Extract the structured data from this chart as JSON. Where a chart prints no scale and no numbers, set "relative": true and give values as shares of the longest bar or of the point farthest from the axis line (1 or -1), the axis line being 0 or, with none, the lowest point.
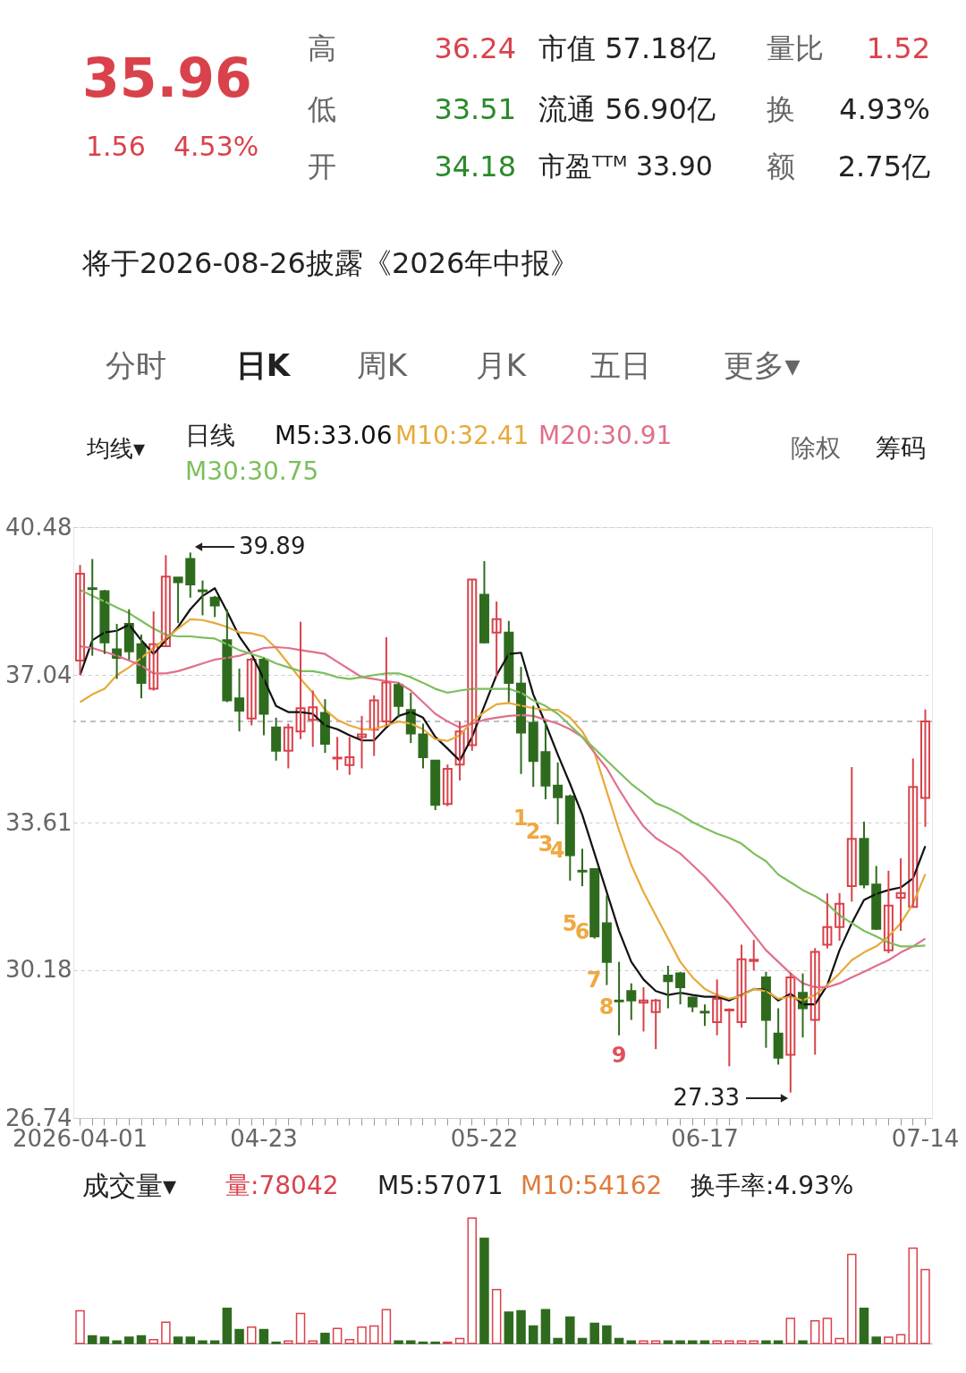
{
  "chart_data": [
    {
      "type": "candlestick",
      "title": "日线",
      "legend": "top",
      "grid": "y",
      "categories": [
        "2026-04-01",
        null,
        null,
        null,
        null,
        null,
        null,
        null,
        null,
        null,
        null,
        null,
        null,
        null,
        null,
        "04-23",
        null,
        null,
        null,
        null,
        null,
        null,
        null,
        null,
        null,
        null,
        null,
        null,
        null,
        null,
        null,
        null,
        null,
        "05-22",
        null,
        null,
        null,
        null,
        null,
        null,
        null,
        null,
        null,
        null,
        null,
        null,
        null,
        null,
        null,
        null,
        null,
        "06-17",
        null,
        null,
        null,
        null,
        null,
        null,
        null,
        null,
        null,
        null,
        null,
        null,
        null,
        null,
        null,
        null,
        null,
        "07-14"
      ],
      "ylim": [
        26.74,
        40.48
      ],
      "yticks": [
        26.74,
        30.18,
        33.61,
        37.04,
        40.48
      ],
      "ohlc": [
        [
          37.38,
          39.6,
          37.04,
          39.4
        ],
        [
          39.06,
          39.74,
          37.49,
          39.04
        ],
        [
          38.99,
          39.02,
          37.53,
          37.8
        ],
        [
          37.64,
          38.23,
          36.95,
          37.44
        ],
        [
          38.23,
          38.57,
          37.4,
          37.59
        ],
        [
          37.76,
          37.98,
          36.5,
          36.86
        ],
        [
          36.72,
          38.52,
          36.68,
          37.76
        ],
        [
          37.71,
          39.83,
          37.71,
          39.33
        ],
        [
          39.31,
          39.31,
          38.25,
          39.2
        ],
        [
          39.74,
          39.89,
          38.84,
          39.15
        ],
        [
          39.01,
          39.24,
          38.43,
          38.99
        ],
        [
          38.84,
          38.88,
          38.39,
          38.66
        ],
        [
          37.85,
          38.57,
          36.41,
          36.45
        ],
        [
          36.5,
          37.19,
          35.73,
          36.21
        ],
        [
          36.03,
          37.44,
          35.87,
          37.4
        ],
        [
          37.4,
          37.44,
          35.64,
          36.14
        ],
        [
          35.82,
          36.05,
          35.05,
          35.28
        ],
        [
          35.28,
          35.91,
          34.87,
          35.82
        ],
        [
          35.73,
          38.28,
          35.55,
          36.27
        ],
        [
          36.0,
          36.68,
          35.37,
          36.29
        ],
        [
          36.16,
          36.48,
          35.23,
          35.44
        ],
        [
          35.1,
          35.6,
          34.83,
          35.12
        ],
        [
          34.95,
          35.6,
          34.72,
          35.13
        ],
        [
          35.6,
          36.09,
          34.87,
          35.66
        ],
        [
          35.77,
          36.57,
          35.16,
          36.45
        ],
        [
          35.96,
          37.92,
          35.87,
          36.87
        ],
        [
          36.81,
          36.86,
          36.05,
          36.32
        ],
        [
          36.23,
          36.63,
          35.46,
          35.68
        ],
        [
          35.66,
          35.91,
          34.87,
          35.13
        ],
        [
          35.05,
          35.05,
          33.9,
          34.02
        ],
        [
          34.04,
          34.96,
          33.99,
          34.86
        ],
        [
          34.96,
          35.96,
          34.59,
          35.73
        ],
        [
          35.41,
          39.26,
          35.28,
          39.26
        ],
        [
          38.91,
          39.69,
          37.78,
          37.8
        ],
        [
          38.03,
          38.75,
          36.99,
          38.34
        ],
        [
          38.03,
          38.3,
          36.41,
          36.86
        ],
        [
          36.84,
          37.23,
          34.74,
          35.7
        ],
        [
          35.93,
          36.33,
          34.44,
          35.04
        ],
        [
          35.25,
          35.96,
          34.15,
          34.47
        ],
        [
          34.47,
          35.01,
          33.57,
          34.2
        ],
        [
          34.22,
          34.26,
          32.26,
          32.85
        ],
        [
          32.49,
          33.0,
          32.13,
          32.47
        ],
        [
          32.53,
          32.55,
          30.91,
          30.96
        ],
        [
          31.27,
          31.92,
          29.83,
          30.37
        ],
        [
          29.47,
          30.37,
          28.66,
          29.45
        ],
        [
          29.69,
          29.87,
          29.02,
          29.47
        ],
        [
          29.42,
          29.78,
          28.75,
          29.47
        ],
        [
          29.2,
          29.51,
          28.34,
          29.47
        ],
        [
          30.05,
          30.28,
          29.29,
          29.92
        ],
        [
          30.1,
          30.14,
          29.38,
          29.78
        ],
        [
          29.54,
          29.56,
          29.2,
          29.33
        ],
        [
          29.21,
          29.38,
          28.88,
          29.19
        ],
        [
          28.97,
          29.96,
          28.66,
          29.51
        ],
        [
          29.24,
          29.29,
          27.94,
          29.26
        ],
        [
          28.97,
          30.77,
          28.84,
          30.43
        ],
        [
          30.39,
          30.88,
          30.17,
          30.42
        ],
        [
          30.01,
          30.14,
          28.37,
          29.02
        ],
        [
          28.7,
          29.29,
          27.98,
          28.14
        ],
        [
          28.21,
          30.12,
          27.33,
          30.01
        ],
        [
          29.65,
          30.1,
          28.61,
          29.29
        ],
        [
          29.02,
          30.69,
          28.21,
          30.6
        ],
        [
          30.77,
          31.96,
          30.68,
          31.18
        ],
        [
          31.18,
          31.97,
          30.86,
          31.72
        ],
        [
          32.13,
          34.9,
          31.77,
          33.23
        ],
        [
          33.23,
          33.63,
          32.08,
          32.17
        ],
        [
          32.17,
          32.6,
          31.11,
          31.14
        ],
        [
          30.64,
          32.49,
          30.57,
          31.68
        ],
        [
          31.86,
          32.78,
          31.09,
          31.97
        ],
        [
          31.65,
          35.1,
          31.63,
          34.44
        ],
        [
          34.18,
          36.24,
          33.51,
          35.96
        ]
      ],
      "colors": [
        "#d9424b",
        "#2f6b1e",
        "#2f6b1e",
        "#2f6b1e",
        "#2f6b1e",
        "#2f6b1e",
        "#d9424b",
        "#d9424b",
        "#2f6b1e",
        "#2f6b1e",
        "#2f6b1e",
        "#2f6b1e",
        "#2f6b1e",
        "#2f6b1e",
        "#d9424b",
        "#2f6b1e",
        "#2f6b1e",
        "#d9424b",
        "#d9424b",
        "#d9424b",
        "#2f6b1e",
        "#d9424b",
        "#d9424b",
        "#d9424b",
        "#d9424b",
        "#d9424b",
        "#2f6b1e",
        "#2f6b1e",
        "#2f6b1e",
        "#2f6b1e",
        "#d9424b",
        "#d9424b",
        "#d9424b",
        "#2f6b1e",
        "#d9424b",
        "#2f6b1e",
        "#2f6b1e",
        "#2f6b1e",
        "#2f6b1e",
        "#2f6b1e",
        "#2f6b1e",
        "#2f6b1e",
        "#2f6b1e",
        "#2f6b1e",
        "#2f6b1e",
        "#2f6b1e",
        "#d9424b",
        "#d9424b",
        "#2f6b1e",
        "#2f6b1e",
        "#2f6b1e",
        "#2f6b1e",
        "#d9424b",
        "#d9424b",
        "#d9424b",
        "#d9424b",
        "#2f6b1e",
        "#2f6b1e",
        "#d9424b",
        "#2f6b1e",
        "#d9424b",
        "#d9424b",
        "#d9424b",
        "#d9424b",
        "#2f6b1e",
        "#2f6b1e",
        "#d9424b",
        "#d9424b",
        "#d9424b",
        "#d9424b"
      ],
      "series": [
        {
          "name": "M5:33.06",
          "type": "line",
          "color": "#111111",
          "values": [
            37.04,
            37.85,
            38.03,
            38.07,
            38.21,
            37.85,
            37.53,
            37.85,
            38.16,
            38.57,
            38.88,
            39.06,
            38.52,
            37.94,
            37.53,
            36.95,
            36.32,
            36.18,
            36.18,
            36.14,
            35.87,
            35.78,
            35.64,
            35.52,
            35.52,
            35.82,
            36.09,
            36.18,
            36.05,
            35.6,
            35.33,
            35.05,
            35.6,
            36.32,
            37.04,
            37.53,
            37.56,
            36.59,
            35.91,
            35.19,
            34.51,
            33.79,
            32.89,
            31.99,
            31.09,
            30.37,
            29.96,
            29.69,
            29.6,
            29.65,
            29.6,
            29.56,
            29.56,
            29.47,
            29.6,
            29.74,
            29.72,
            29.47,
            29.63,
            29.38,
            29.38,
            29.83,
            30.64,
            31.27,
            31.81,
            31.95,
            32.04,
            32.1,
            32.31,
            33.06
          ]
        },
        {
          "name": "M10:32.41",
          "type": "line",
          "color": "#e8a93a",
          "values": [
            36.41,
            36.59,
            36.72,
            37.04,
            37.22,
            37.44,
            37.67,
            37.89,
            38.12,
            38.34,
            38.32,
            38.25,
            38.16,
            38.03,
            38.01,
            37.94,
            37.67,
            37.31,
            36.95,
            36.63,
            36.23,
            36.0,
            35.87,
            35.78,
            35.78,
            35.87,
            35.96,
            35.91,
            35.78,
            35.55,
            35.51,
            35.64,
            35.96,
            36.18,
            36.36,
            36.39,
            36.33,
            36.27,
            36.23,
            36.23,
            36.05,
            35.73,
            35.23,
            34.33,
            33.43,
            32.62,
            31.99,
            31.45,
            30.91,
            30.37,
            30.01,
            29.74,
            29.6,
            29.51,
            29.58,
            29.74,
            29.69,
            29.51,
            29.56,
            29.47,
            29.6,
            29.83,
            30.1,
            30.41,
            30.59,
            30.73,
            30.96,
            31.27,
            31.72,
            32.41
          ]
        },
        {
          "name": "M20:30.91",
          "type": "line",
          "color": "#e0708a",
          "values": [
            37.71,
            37.67,
            37.58,
            37.49,
            37.38,
            37.26,
            37.08,
            37.08,
            37.13,
            37.22,
            37.31,
            37.4,
            37.44,
            37.49,
            37.58,
            37.67,
            37.69,
            37.67,
            37.62,
            37.58,
            37.53,
            37.35,
            37.17,
            36.99,
            36.95,
            36.9,
            36.86,
            36.68,
            36.41,
            36.14,
            35.96,
            35.82,
            35.91,
            36.0,
            36.05,
            36.09,
            36.11,
            36.09,
            36.0,
            35.91,
            35.78,
            35.6,
            35.23,
            34.87,
            34.38,
            33.93,
            33.52,
            33.25,
            33.07,
            32.89,
            32.62,
            32.35,
            32.04,
            31.72,
            31.36,
            31.0,
            30.64,
            30.37,
            30.1,
            29.87,
            29.78,
            29.78,
            29.87,
            30.01,
            30.14,
            30.28,
            30.41,
            30.59,
            30.73,
            30.91
          ]
        },
        {
          "name": "M30:30.75",
          "type": "line",
          "color": "#7cbf5e",
          "values": [
            39.02,
            38.88,
            38.75,
            38.61,
            38.48,
            38.3,
            38.12,
            37.98,
            37.94,
            37.94,
            37.91,
            37.89,
            37.76,
            37.62,
            37.53,
            37.44,
            37.31,
            37.22,
            37.13,
            37.13,
            37.08,
            36.99,
            36.95,
            36.99,
            37.04,
            37.08,
            37.08,
            36.99,
            36.86,
            36.72,
            36.63,
            36.68,
            36.72,
            36.72,
            36.72,
            36.72,
            36.63,
            36.45,
            36.32,
            36.14,
            35.87,
            35.6,
            35.33,
            35.05,
            34.78,
            34.51,
            34.29,
            34.06,
            33.95,
            33.8,
            33.62,
            33.48,
            33.35,
            33.25,
            33.12,
            32.89,
            32.71,
            32.4,
            32.22,
            32.04,
            31.9,
            31.72,
            31.45,
            31.27,
            31.09,
            30.96,
            30.82,
            30.73,
            30.73,
            30.75
          ]
        }
      ],
      "ref_lines": [
        {
          "axis": "y",
          "value": 35.96,
          "color": "#aaaaaa",
          "line_style": "dashed"
        }
      ],
      "annotations": [
        "35.96",
        "1.56",
        "4.53%",
        "高",
        "36.24",
        "低",
        "33.51",
        "开",
        "34.18",
        "市值 57.18亿",
        "流通 56.90亿",
        "市盈ᵀᵀᴹ 33.90",
        "量比",
        "1.52",
        "换",
        "4.93%",
        "额",
        "2.75亿",
        "将于2026-08-26披露《2026年中报》",
        "分时",
        "日K",
        "周K",
        "月K",
        "五日",
        "更多▾",
        "均线▾",
        "除权",
        "筹码",
        "39.89",
        "27.33",
        "1",
        "2",
        "3",
        "4",
        "5",
        "6",
        "7",
        "8",
        "9"
      ]
    },
    {
      "type": "bar",
      "relative": true,
      "title": "成交量▾",
      "categories": [
        null,
        null,
        null,
        null,
        null,
        null,
        null,
        null,
        null,
        null,
        null,
        null,
        null,
        null,
        null,
        null,
        null,
        null,
        null,
        null,
        null,
        null,
        null,
        null,
        null,
        null,
        null,
        null,
        null,
        null,
        null,
        null,
        null,
        null,
        null,
        null,
        null,
        null,
        null,
        null,
        null,
        null,
        null,
        null,
        null,
        null,
        null,
        null,
        null,
        null,
        null,
        null,
        null,
        null,
        null,
        null,
        null,
        null,
        null,
        null,
        null,
        null,
        null,
        null,
        null,
        null,
        null,
        null,
        null,
        null
      ],
      "values": [
        0.26,
        0.06,
        0.05,
        0.02,
        0.05,
        0.06,
        0.03,
        0.17,
        0.05,
        0.05,
        0.02,
        0.02,
        0.28,
        0.11,
        0.13,
        0.11,
        0.01,
        0.02,
        0.24,
        0.02,
        0.08,
        0.12,
        0.03,
        0.13,
        0.14,
        0.27,
        0.02,
        0.02,
        0.01,
        0.01,
        0.01,
        0.04,
        1,
        0.84,
        0.43,
        0.25,
        0.26,
        0.14,
        0.27,
        0.04,
        0.21,
        0.04,
        0.16,
        0.14,
        0.04,
        0.02,
        0.02,
        0.02,
        0.02,
        0.02,
        0.02,
        0.02,
        0.02,
        0.02,
        0.02,
        0.02,
        0.02,
        0.02,
        0.2,
        0.02,
        0.18,
        0.2,
        0.04,
        0.71,
        0.28,
        0.05,
        0.05,
        0.07,
        0.76,
        0.59
      ],
      "colors": [
        "#d9424b",
        "#2f6b1e",
        "#2f6b1e",
        "#2f6b1e",
        "#2f6b1e",
        "#2f6b1e",
        "#d9424b",
        "#d9424b",
        "#2f6b1e",
        "#2f6b1e",
        "#2f6b1e",
        "#2f6b1e",
        "#2f6b1e",
        "#2f6b1e",
        "#d9424b",
        "#2f6b1e",
        "#2f6b1e",
        "#d9424b",
        "#d9424b",
        "#d9424b",
        "#2f6b1e",
        "#d9424b",
        "#d9424b",
        "#d9424b",
        "#d9424b",
        "#d9424b",
        "#2f6b1e",
        "#2f6b1e",
        "#2f6b1e",
        "#2f6b1e",
        "#d9424b",
        "#d9424b",
        "#d9424b",
        "#2f6b1e",
        "#d9424b",
        "#2f6b1e",
        "#2f6b1e",
        "#2f6b1e",
        "#2f6b1e",
        "#2f6b1e",
        "#2f6b1e",
        "#2f6b1e",
        "#2f6b1e",
        "#2f6b1e",
        "#2f6b1e",
        "#2f6b1e",
        "#d9424b",
        "#d9424b",
        "#2f6b1e",
        "#2f6b1e",
        "#2f6b1e",
        "#2f6b1e",
        "#d9424b",
        "#d9424b",
        "#d9424b",
        "#d9424b",
        "#2f6b1e",
        "#2f6b1e",
        "#d9424b",
        "#2f6b1e",
        "#d9424b",
        "#d9424b",
        "#d9424b",
        "#d9424b",
        "#2f6b1e",
        "#2f6b1e",
        "#d9424b",
        "#d9424b",
        "#d9424b",
        "#d9424b"
      ],
      "annotations": [
        "量:78042",
        "M5:57071",
        "M10:54162",
        "换手率:4.93%"
      ]
    }
  ]
}
